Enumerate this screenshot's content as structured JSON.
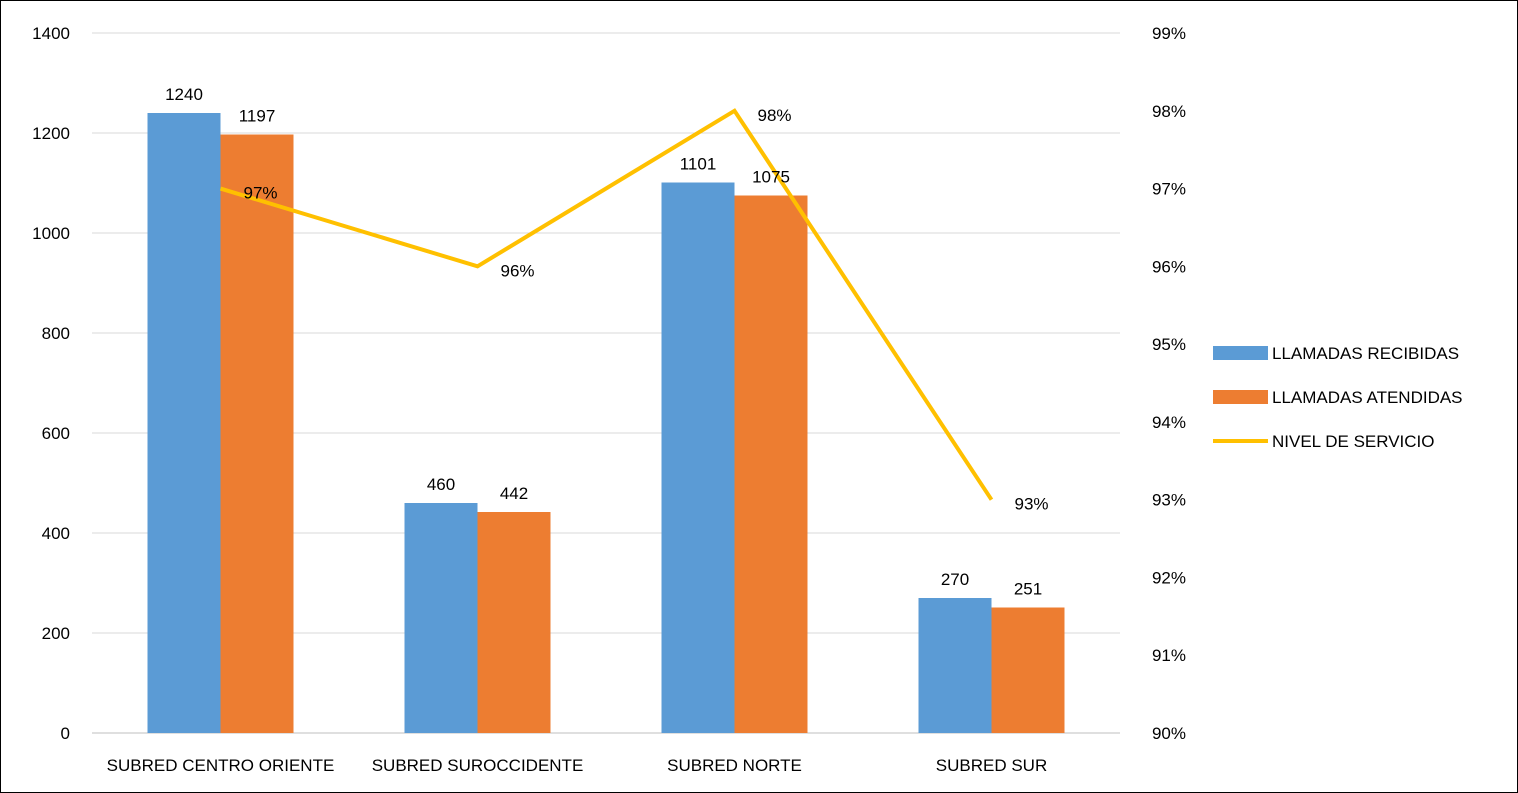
{
  "chart_data": {
    "type": "bar",
    "categories": [
      "SUBRED CENTRO ORIENTE",
      "SUBRED SUROCCIDENTE",
      "SUBRED NORTE",
      "SUBRED SUR"
    ],
    "series": [
      {
        "name": "LLAMADAS RECIBIDAS",
        "type": "bar",
        "axis": "left",
        "color": "#5B9BD5",
        "values": [
          1240,
          460,
          1101,
          270
        ],
        "labels": [
          "1240",
          "460",
          "1101",
          "270"
        ]
      },
      {
        "name": "LLAMADAS ATENDIDAS",
        "type": "bar",
        "axis": "left",
        "color": "#ED7D31",
        "values": [
          1197,
          442,
          1075,
          251
        ],
        "labels": [
          "1197",
          "442",
          "1075",
          "251"
        ]
      },
      {
        "name": "NIVEL DE SERVICIO",
        "type": "line",
        "axis": "right",
        "color": "#FFC000",
        "values": [
          0.97,
          0.96,
          0.98,
          0.93
        ],
        "labels": [
          "97%",
          "96%",
          "98%",
          "93%"
        ]
      }
    ],
    "y_left": {
      "min": 0,
      "max": 1400,
      "ticks": [
        "0",
        "200",
        "400",
        "600",
        "800",
        "1000",
        "1200",
        "1400"
      ]
    },
    "y_right": {
      "min": 0.9,
      "max": 0.99,
      "ticks": [
        "90%",
        "91%",
        "92%",
        "93%",
        "94%",
        "95%",
        "96%",
        "97%",
        "98%",
        "99%"
      ]
    },
    "grid": true,
    "legend_position": "right"
  }
}
